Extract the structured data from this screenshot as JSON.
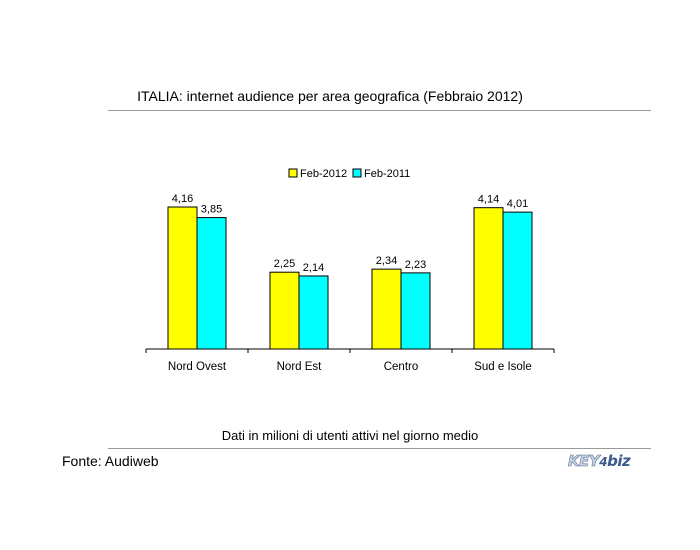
{
  "title": "ITALIA: internet audience per area geografica (Febbraio 2012)",
  "note": "Dati in milioni di utenti attivi nel giorno medio",
  "source": "Fonte: Audiweb",
  "logo": {
    "key": "KEY",
    "four": "4",
    "biz": "biz"
  },
  "chart_data": {
    "type": "bar",
    "categories": [
      "Nord Ovest",
      "Nord Est",
      "Centro",
      "Sud e Isole"
    ],
    "series": [
      {
        "name": "Feb-2012",
        "values": [
          4.16,
          2.25,
          2.34,
          4.14
        ],
        "labels": [
          "4,16",
          "2,25",
          "2,34",
          "4,14"
        ],
        "color": "#ffff00"
      },
      {
        "name": "Feb-2011",
        "values": [
          3.85,
          2.14,
          2.23,
          4.01
        ],
        "labels": [
          "3,85",
          "2,14",
          "2,23",
          "4,01"
        ],
        "color": "#00ffff"
      }
    ],
    "ylim": [
      0,
      4.16
    ],
    "legend": "top-center",
    "grid": false
  }
}
